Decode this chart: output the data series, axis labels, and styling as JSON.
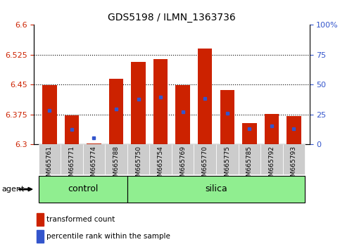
{
  "title": "GDS5198 / ILMN_1363736",
  "samples": [
    "GSM665761",
    "GSM665771",
    "GSM665774",
    "GSM665788",
    "GSM665750",
    "GSM665754",
    "GSM665769",
    "GSM665770",
    "GSM665775",
    "GSM665785",
    "GSM665792",
    "GSM665793"
  ],
  "groups": [
    "control",
    "control",
    "control",
    "control",
    "silica",
    "silica",
    "silica",
    "silica",
    "silica",
    "silica",
    "silica",
    "silica"
  ],
  "red_values": [
    6.449,
    6.373,
    6.302,
    6.464,
    6.507,
    6.514,
    6.448,
    6.54,
    6.436,
    6.353,
    6.377,
    6.372
  ],
  "blue_values": [
    6.385,
    6.338,
    6.316,
    6.388,
    6.413,
    6.418,
    6.381,
    6.416,
    6.378,
    6.339,
    6.347,
    6.34
  ],
  "ylim": [
    6.3,
    6.6
  ],
  "yticks": [
    6.3,
    6.375,
    6.45,
    6.525,
    6.6
  ],
  "right_yticks": [
    0,
    25,
    50,
    75,
    100
  ],
  "right_yticklabels": [
    "0",
    "25",
    "50",
    "75",
    "100%"
  ],
  "grid_values": [
    6.375,
    6.45,
    6.525
  ],
  "green_color": "#90EE90",
  "bar_color": "#CC2200",
  "blue_color": "#3355CC",
  "bar_bottom": 6.3,
  "bar_width": 0.65,
  "title_fontsize": 10,
  "legend_red": "transformed count",
  "legend_blue": "percentile rank within the sample"
}
